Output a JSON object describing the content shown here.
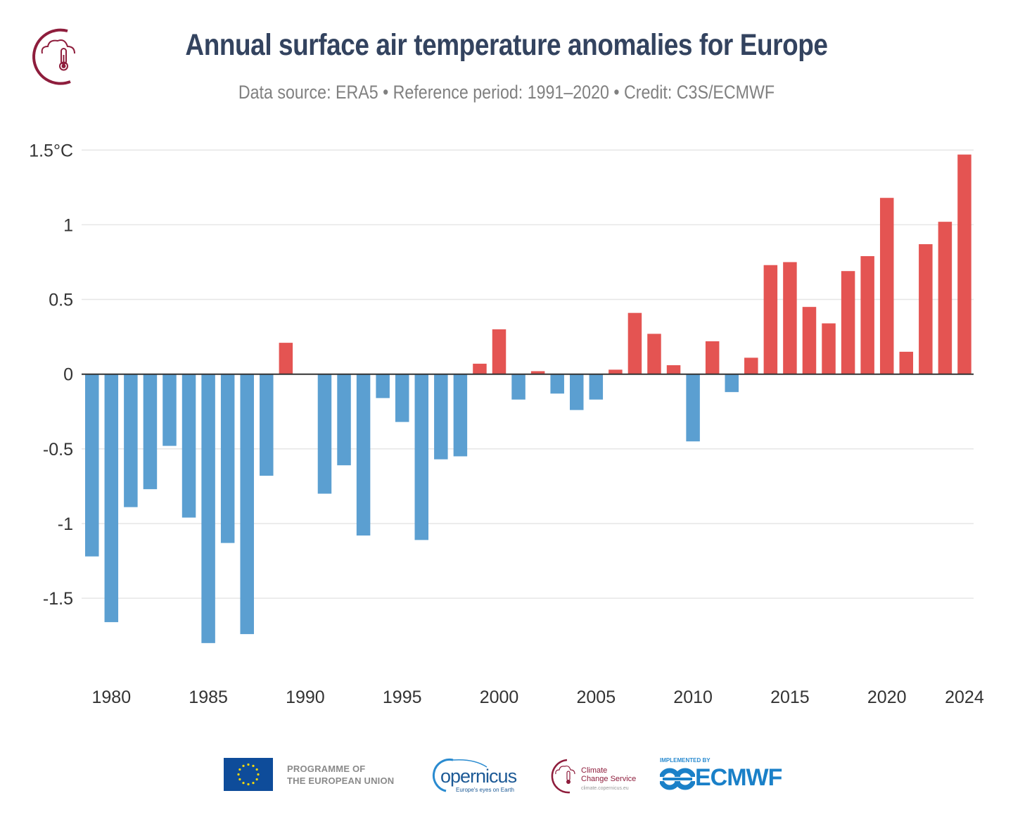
{
  "header": {
    "title": "Annual surface air temperature anomalies for Europe",
    "subtitle": "Data source: ERA5 • Reference period: 1991–2020 • Credit: C3S/ECMWF",
    "logo_icon": "cloud-thermometer-icon"
  },
  "colors": {
    "positive": "#e45452",
    "negative": "#5b9fd1",
    "title": "#33435f",
    "subtitle": "#808080",
    "brand": "#8e1d3c",
    "grid": "#e6e6e6",
    "zero_line": "#333333"
  },
  "chart_data": {
    "type": "bar",
    "title": "Annual surface air temperature anomalies for Europe",
    "subtitle": "Data source: ERA5 • Reference period: 1991–2020 • Credit: C3S/ECMWF",
    "xlabel": "",
    "ylabel": "",
    "ylim": [
      -1.9,
      1.5
    ],
    "grid": true,
    "legend": "none",
    "y_ticks": [
      {
        "value": 1.5,
        "label": "1.5°C"
      },
      {
        "value": 1,
        "label": "1"
      },
      {
        "value": 0.5,
        "label": "0.5"
      },
      {
        "value": 0,
        "label": "0"
      },
      {
        "value": -0.5,
        "label": "-0.5"
      },
      {
        "value": -1,
        "label": "-1"
      },
      {
        "value": -1.5,
        "label": "-1.5"
      }
    ],
    "x_ticks": [
      {
        "value": 1980,
        "label": "1980"
      },
      {
        "value": 1985,
        "label": "1985"
      },
      {
        "value": 1990,
        "label": "1990"
      },
      {
        "value": 1995,
        "label": "1995"
      },
      {
        "value": 2000,
        "label": "2000"
      },
      {
        "value": 2005,
        "label": "2005"
      },
      {
        "value": 2010,
        "label": "2010"
      },
      {
        "value": 2015,
        "label": "2015"
      },
      {
        "value": 2020,
        "label": "2020"
      },
      {
        "value": 2024,
        "label": "2024"
      }
    ],
    "categories": [
      1979,
      1980,
      1981,
      1982,
      1983,
      1984,
      1985,
      1986,
      1987,
      1988,
      1989,
      1990,
      1991,
      1992,
      1993,
      1994,
      1995,
      1996,
      1997,
      1998,
      1999,
      2000,
      2001,
      2002,
      2003,
      2004,
      2005,
      2006,
      2007,
      2008,
      2009,
      2010,
      2011,
      2012,
      2013,
      2014,
      2015,
      2016,
      2017,
      2018,
      2019,
      2020,
      2021,
      2022,
      2023,
      2024
    ],
    "values": [
      -1.22,
      -1.66,
      -0.89,
      -0.77,
      -0.48,
      -0.96,
      -1.8,
      -1.13,
      -1.74,
      -0.68,
      0.21,
      0.0,
      -0.8,
      -0.61,
      -1.08,
      -0.16,
      -0.32,
      -1.11,
      -0.57,
      -0.55,
      0.07,
      0.3,
      -0.17,
      0.02,
      -0.13,
      -0.24,
      -0.17,
      0.03,
      0.41,
      0.27,
      0.06,
      -0.45,
      0.22,
      -0.12,
      0.11,
      0.73,
      0.75,
      0.45,
      0.34,
      0.69,
      0.79,
      1.18,
      0.15,
      0.87,
      1.02,
      1.47
    ]
  },
  "footer": {
    "eu_flag_icon": "eu-flag-icon",
    "eu_text_line1": "PROGRAMME OF",
    "eu_text_line2": "THE EUROPEAN UNION",
    "copernicus_word": "opernicus",
    "copernicus_tagline": "Europe's eyes on Earth",
    "c3s_line1": "Climate",
    "c3s_line2": "Change Service",
    "c3s_url": "climate.copernicus.eu",
    "ecmwf_small": "IMPLEMENTED BY",
    "ecmwf_word": "ECMWF"
  }
}
